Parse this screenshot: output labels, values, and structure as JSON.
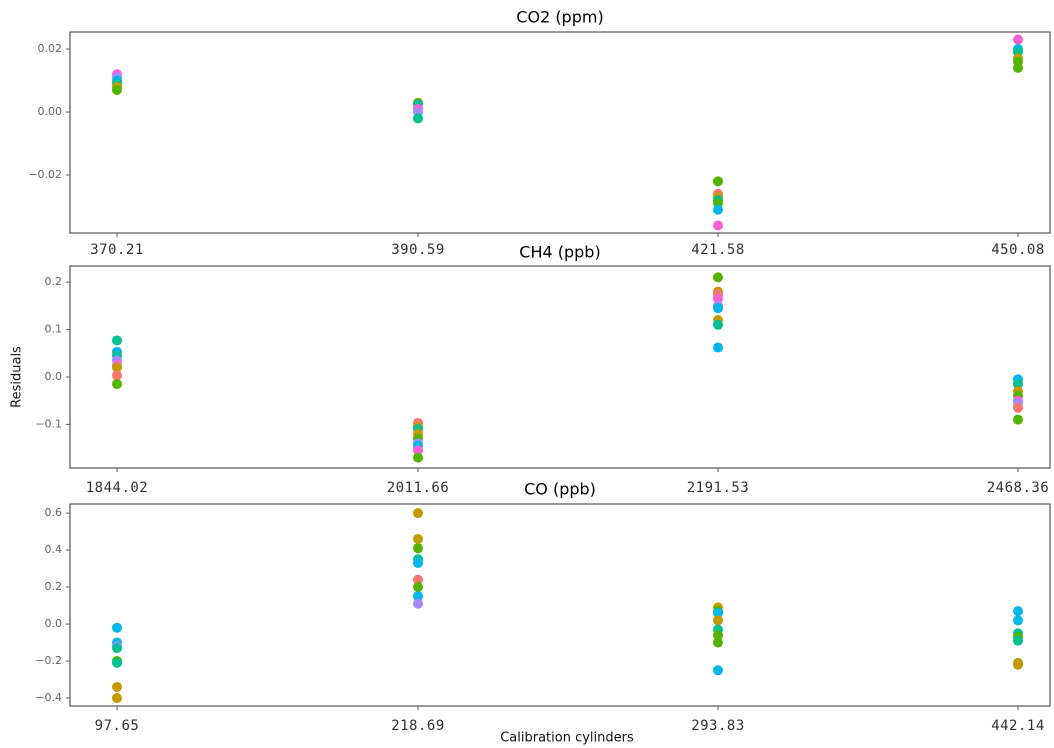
{
  "ylabel": "Residuals",
  "xlabel": "Calibration cylinders",
  "chart_data": [
    {
      "type": "strip",
      "title": "CO2 (ppm)",
      "categories": [
        "370.21",
        "390.59",
        "421.58",
        "450.08"
      ],
      "values": [
        [
          0.012,
          0.011,
          0.01,
          0.009,
          0.008,
          0.007
        ],
        [
          0.003,
          0.0025,
          0.001,
          0.0,
          -0.002
        ],
        [
          -0.022,
          -0.026,
          -0.027,
          -0.028,
          -0.029,
          -0.031,
          -0.036
        ],
        [
          0.023,
          0.02,
          0.019,
          0.017,
          0.016,
          0.014
        ]
      ],
      "colors": [
        [
          "#FB61D7",
          "#A58AFF",
          "#00B6EB",
          "#00C094",
          "#C49A00",
          "#53B400"
        ],
        [
          "#C49A00",
          "#00C094",
          "#FB61D7",
          "#A58AFF",
          "#00C094"
        ],
        [
          "#53B400",
          "#F8766D",
          "#C49A00",
          "#00C094",
          "#53B400",
          "#00B6EB",
          "#FB61D7"
        ],
        [
          "#FB61D7",
          "#00B6EB",
          "#00C094",
          "#C49A00",
          "#53B400",
          "#53B400"
        ]
      ],
      "ylim": [
        -0.0384,
        0.0254
      ],
      "yticks": [
        0.02,
        {
          "value": 0,
          "label": "0.00"
        },
        {
          "value": -0.02,
          "label": "−0.02"
        }
      ]
    },
    {
      "type": "strip",
      "title": "CH4 (ppb)",
      "categories": [
        "1844.02",
        "2011.66",
        "2191.53",
        "2468.36"
      ],
      "values": [
        [
          0.077,
          0.053,
          0.045,
          0.035,
          0.025,
          0.02,
          0.003,
          -0.015
        ],
        [
          -0.097,
          -0.105,
          -0.11,
          -0.12,
          -0.13,
          -0.14,
          -0.145,
          -0.155,
          -0.17
        ],
        [
          0.21,
          0.18,
          0.175,
          0.165,
          0.15,
          0.145,
          0.12,
          0.11,
          0.062
        ],
        [
          -0.005,
          -0.015,
          -0.03,
          -0.04,
          -0.05,
          -0.055,
          -0.065,
          -0.09
        ]
      ],
      "colors": [
        [
          "#00C094",
          "#00B6EB",
          "#00C094",
          "#A58AFF",
          "#FB61D7",
          "#C49A00",
          "#F8766D",
          "#53B400"
        ],
        [
          "#F8766D",
          "#C49A00",
          "#00C094",
          "#C49A00",
          "#53B400",
          "#A58AFF",
          "#00B6EB",
          "#FB61D7",
          "#53B400"
        ],
        [
          "#53B400",
          "#C49A00",
          "#F8766D",
          "#FB61D7",
          "#A58AFF",
          "#00B6EB",
          "#C49A00",
          "#00C094",
          "#00B6EB"
        ],
        [
          "#00B6EB",
          "#00C094",
          "#C49A00",
          "#53B400",
          "#FB61D7",
          "#A58AFF",
          "#F8766D",
          "#53B400"
        ]
      ],
      "ylim": [
        -0.192,
        0.234
      ],
      "yticks": [
        0.2,
        0.1,
        {
          "value": 0,
          "label": "0.0"
        },
        {
          "value": -0.1,
          "label": "−0.1"
        }
      ]
    },
    {
      "type": "strip",
      "title": "CO (ppb)",
      "categories": [
        "97.65",
        "218.69",
        "293.83",
        "442.14"
      ],
      "values": [
        [
          -0.02,
          -0.1,
          -0.12,
          -0.13,
          -0.2,
          -0.21,
          -0.34,
          -0.4
        ],
        [
          0.6,
          0.46,
          0.41,
          0.35,
          0.33,
          0.24,
          0.2,
          0.15,
          0.11
        ],
        [
          0.09,
          0.07,
          0.06,
          0.02,
          -0.03,
          -0.06,
          -0.1,
          -0.25
        ],
        [
          0.07,
          0.02,
          -0.05,
          -0.07,
          -0.09,
          -0.21,
          -0.22
        ]
      ],
      "colors": [
        [
          "#00B6EB",
          "#00B6EB",
          "#A58AFF",
          "#00C094",
          "#53B400",
          "#00C094",
          "#C49A00",
          "#C49A00"
        ],
        [
          "#C49A00",
          "#C49A00",
          "#53B400",
          "#00C094",
          "#00B6EB",
          "#F8766D",
          "#53B400",
          "#00B6EB",
          "#A58AFF"
        ],
        [
          "#C49A00",
          "#53B400",
          "#00B6EB",
          "#C49A00",
          "#00C094",
          "#53B400",
          "#53B400",
          "#00B6EB"
        ],
        [
          "#00B6EB",
          "#00B6EB",
          "#00C094",
          "#53B400",
          "#00C094",
          "#C49A00",
          "#C49A00"
        ]
      ],
      "ylim": [
        -0.443,
        0.649
      ],
      "yticks": [
        0.6,
        0.4,
        0.2,
        {
          "value": 0,
          "label": "0.0"
        },
        {
          "value": -0.2,
          "label": "−0.2"
        },
        {
          "value": -0.4,
          "label": "−0.4"
        }
      ]
    }
  ]
}
